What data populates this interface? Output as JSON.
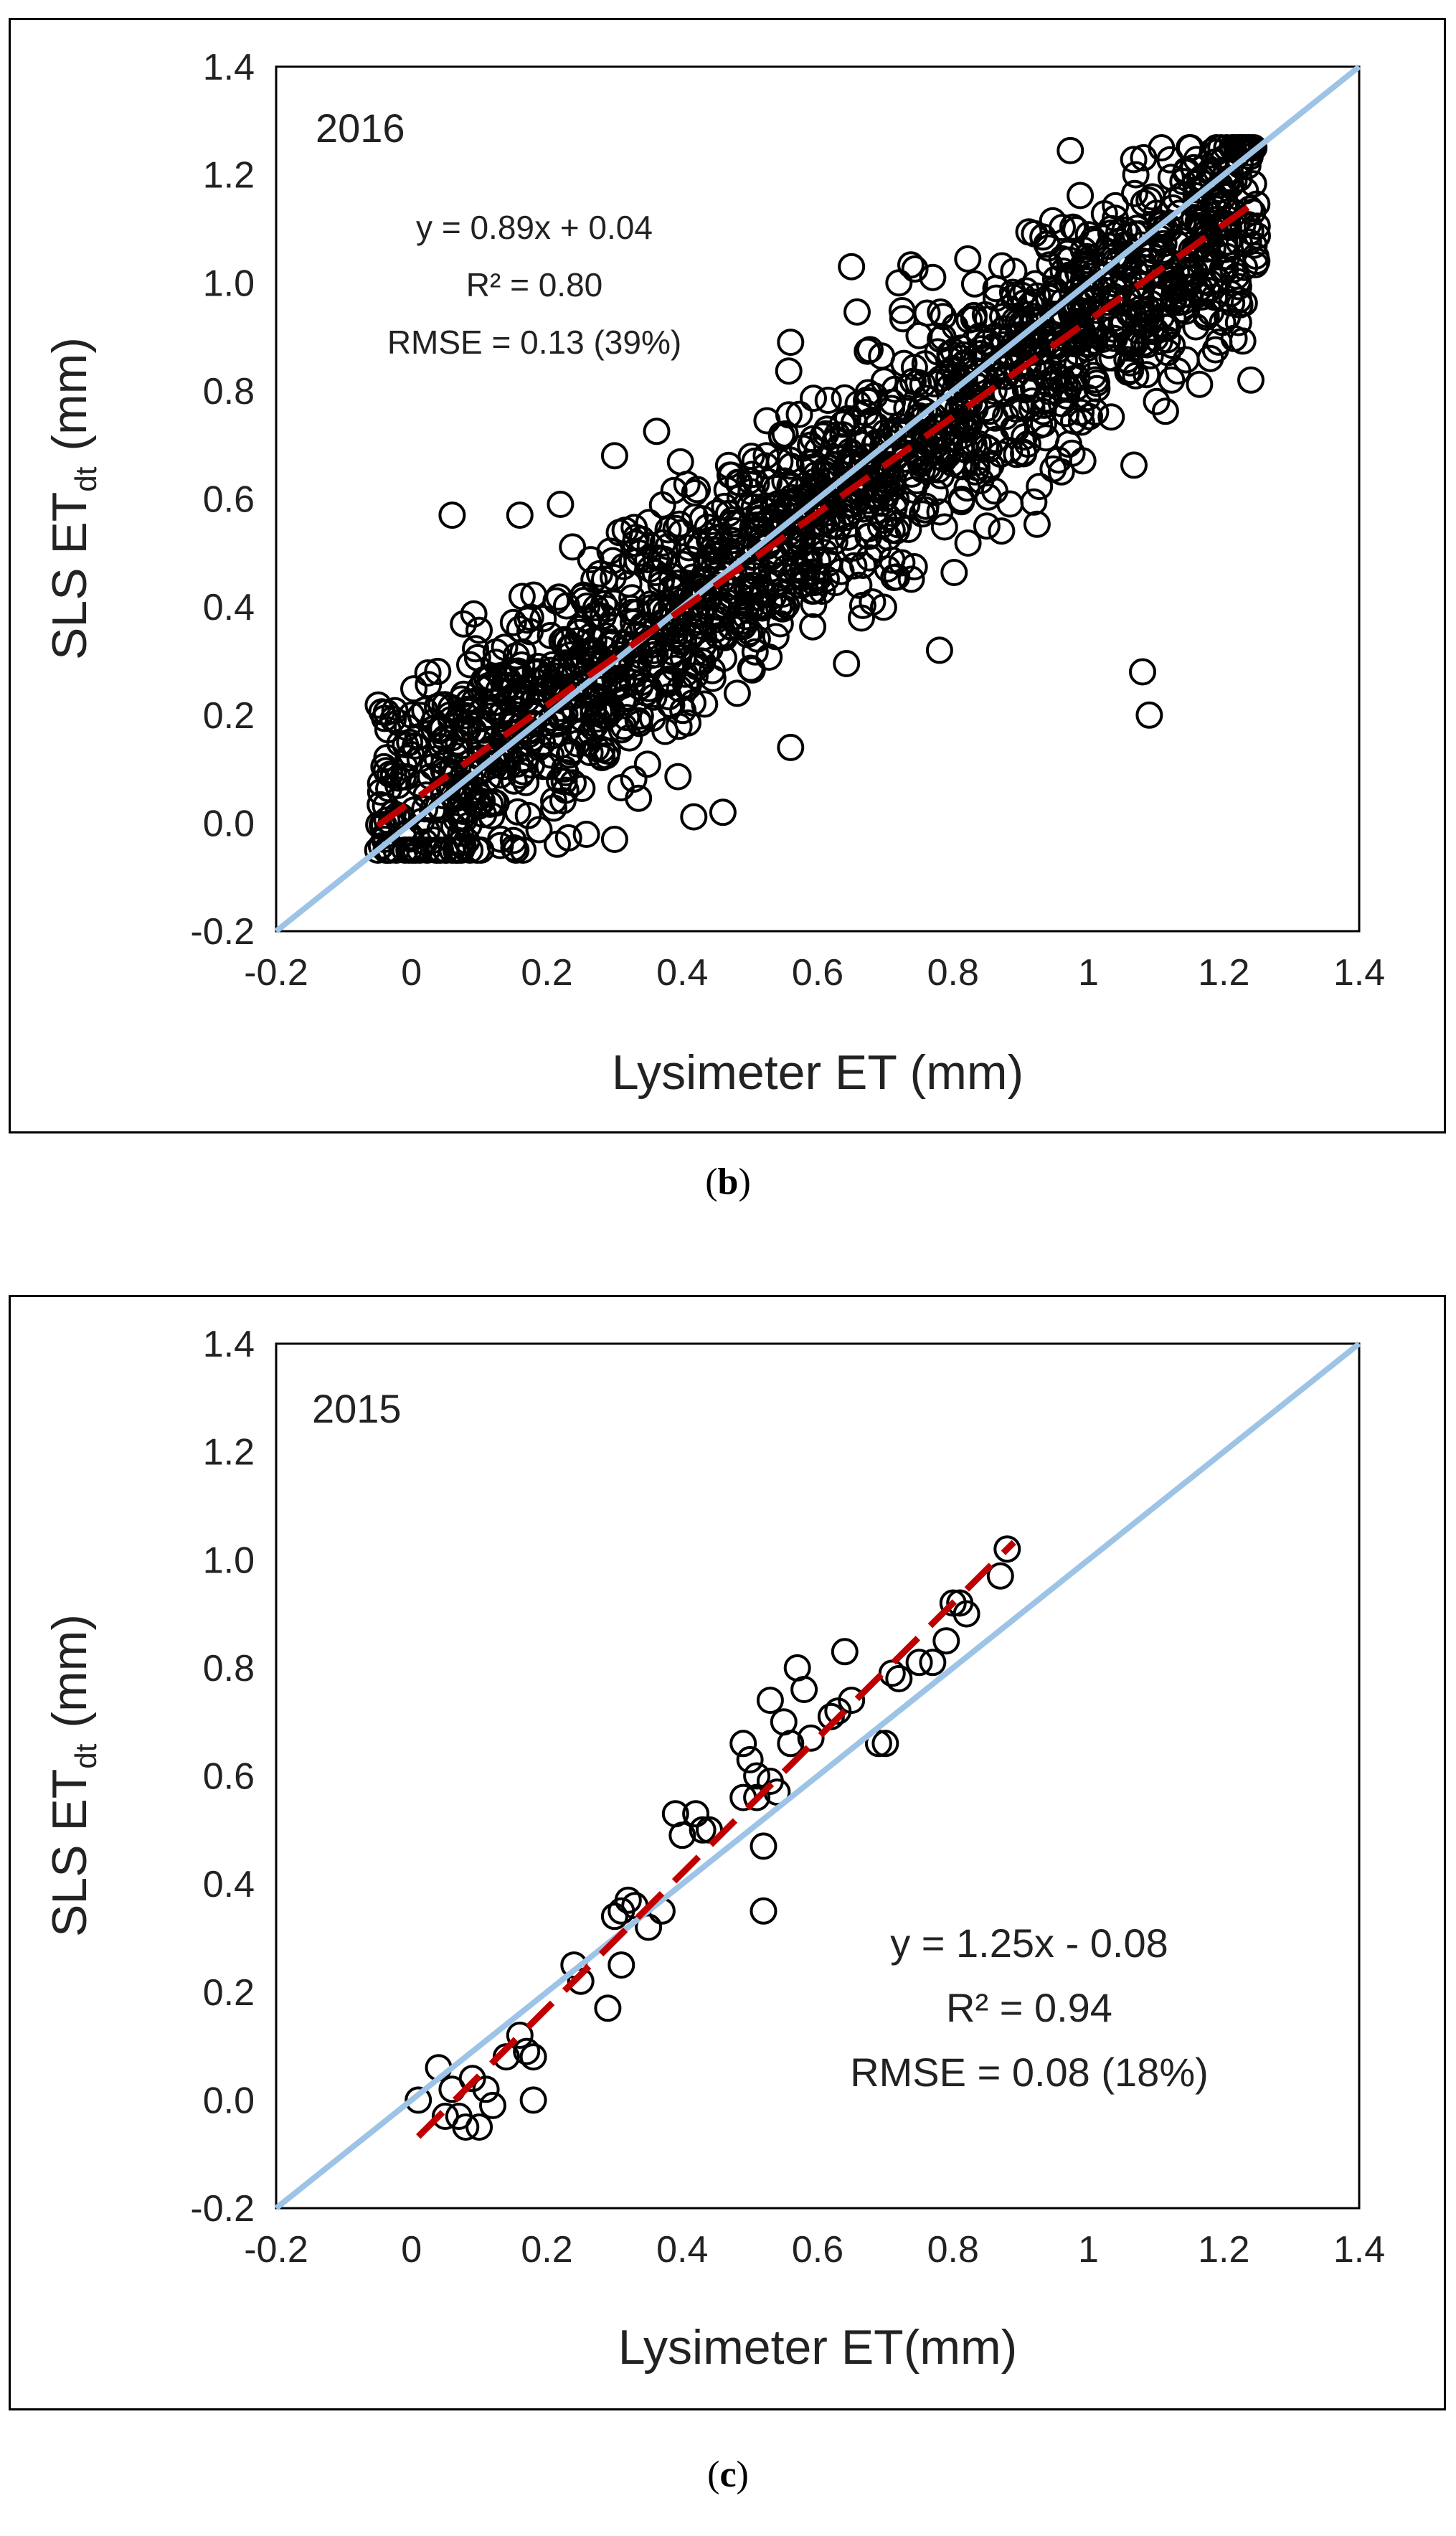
{
  "colors": {
    "identity_line": "#9dc3e6",
    "regression_line": "#c00000",
    "marker_stroke": "#000000"
  },
  "chart_data": [
    {
      "panel": "b",
      "type": "scatter",
      "caption": "b",
      "year_label": "2016",
      "equation": "y = 0.89x + 0.04",
      "r2": "R² = 0.80",
      "rmse": "RMSE = 0.13 (39%)",
      "xlabel": "Lysimeter ET (mm)",
      "ylabel_main": "SLS ET",
      "ylabel_sub": "dt",
      "ylabel_unit": "(mm)",
      "xlim": [
        -0.2,
        1.4
      ],
      "ylim": [
        -0.2,
        1.4
      ],
      "x_ticks": [
        "-0.2",
        "0",
        "0.2",
        "0.4",
        "0.6",
        "0.8",
        "1",
        "1.2",
        "1.4"
      ],
      "y_ticks": [
        "-0.2",
        "0.0",
        "0.2",
        "0.4",
        "0.6",
        "0.8",
        "1.0",
        "1.2",
        "1.4"
      ],
      "fit": {
        "slope": 0.89,
        "intercept": 0.04,
        "x_range": [
          -0.05,
          1.25
        ]
      },
      "identity": {
        "x_range": [
          -0.2,
          1.4
        ]
      },
      "points_generator": {
        "count": 1700,
        "slope": 0.89,
        "intercept": 0.04,
        "noise_sd": 0.11,
        "x_min": -0.05,
        "x_max": 1.25,
        "y_min": -0.05,
        "y_max": 1.25
      },
      "points_extra": [
        [
          1.08,
          0.28
        ],
        [
          1.09,
          0.2
        ],
        [
          0.65,
          1.03
        ],
        [
          0.56,
          0.89
        ],
        [
          0.78,
          0.32
        ],
        [
          1.24,
          0.82
        ],
        [
          0.06,
          0.57
        ],
        [
          0.16,
          0.57
        ],
        [
          0.3,
          0.68
        ],
        [
          1.2,
          1.23
        ],
        [
          1.07,
          1.2
        ],
        [
          0.46,
          0.02
        ],
        [
          0.56,
          0.14
        ],
        [
          0.3,
          -0.03
        ],
        [
          0.22,
          0.59
        ],
        [
          0.72,
          1.0
        ],
        [
          0.77,
          1.01
        ],
        [
          1.21,
          0.98
        ],
        [
          1.18,
          0.86
        ],
        [
          0.96,
          0.65
        ],
        [
          -0.04,
          -0.03
        ],
        [
          -0.03,
          0.0
        ],
        [
          0.0,
          0.2
        ],
        [
          0.85,
          0.55
        ]
      ]
    },
    {
      "panel": "c",
      "type": "scatter",
      "caption": "c",
      "year_label": "2015",
      "equation": "y = 1.25x - 0.08",
      "r2": "R² = 0.94",
      "rmse": "RMSE = 0.08 (18%)",
      "xlabel": "Lysimeter ET(mm)",
      "ylabel_main": "SLS ET",
      "ylabel_sub": "dt",
      "ylabel_unit": "(mm)",
      "xlim": [
        -0.2,
        1.4
      ],
      "ylim": [
        -0.2,
        1.4
      ],
      "x_ticks": [
        "-0.2",
        "0",
        "0.2",
        "0.4",
        "0.6",
        "0.8",
        "1",
        "1.2",
        "1.4"
      ],
      "y_ticks": [
        "-0.2",
        "0.0",
        "0.2",
        "0.4",
        "0.6",
        "0.8",
        "1.0",
        "1.2",
        "1.4"
      ],
      "fit": {
        "slope": 1.25,
        "intercept": -0.08,
        "x_range": [
          0.01,
          0.89
        ]
      },
      "identity": {
        "x_range": [
          -0.2,
          1.4
        ]
      },
      "points": [
        [
          0.01,
          0.0
        ],
        [
          0.04,
          0.06
        ],
        [
          0.05,
          -0.03
        ],
        [
          0.06,
          0.02
        ],
        [
          0.07,
          -0.03
        ],
        [
          0.08,
          -0.05
        ],
        [
          0.09,
          0.04
        ],
        [
          0.1,
          -0.05
        ],
        [
          0.11,
          0.02
        ],
        [
          0.12,
          -0.01
        ],
        [
          0.14,
          0.08
        ],
        [
          0.16,
          0.12
        ],
        [
          0.17,
          0.09
        ],
        [
          0.18,
          0.08
        ],
        [
          0.18,
          0.0
        ],
        [
          0.24,
          0.25
        ],
        [
          0.25,
          0.22
        ],
        [
          0.29,
          0.17
        ],
        [
          0.3,
          0.34
        ],
        [
          0.31,
          0.25
        ],
        [
          0.31,
          0.35
        ],
        [
          0.32,
          0.37
        ],
        [
          0.33,
          0.36
        ],
        [
          0.35,
          0.32
        ],
        [
          0.37,
          0.35
        ],
        [
          0.39,
          0.53
        ],
        [
          0.4,
          0.49
        ],
        [
          0.42,
          0.53
        ],
        [
          0.43,
          0.5
        ],
        [
          0.44,
          0.5
        ],
        [
          0.49,
          0.66
        ],
        [
          0.49,
          0.56
        ],
        [
          0.5,
          0.63
        ],
        [
          0.51,
          0.6
        ],
        [
          0.51,
          0.56
        ],
        [
          0.52,
          0.47
        ],
        [
          0.52,
          0.35
        ],
        [
          0.53,
          0.74
        ],
        [
          0.53,
          0.59
        ],
        [
          0.54,
          0.57
        ],
        [
          0.55,
          0.7
        ],
        [
          0.56,
          0.66
        ],
        [
          0.57,
          0.8
        ],
        [
          0.58,
          0.76
        ],
        [
          0.59,
          0.67
        ],
        [
          0.62,
          0.71
        ],
        [
          0.63,
          0.72
        ],
        [
          0.64,
          0.83
        ],
        [
          0.65,
          0.74
        ],
        [
          0.69,
          0.66
        ],
        [
          0.7,
          0.66
        ],
        [
          0.71,
          0.79
        ],
        [
          0.72,
          0.78
        ],
        [
          0.75,
          0.81
        ],
        [
          0.77,
          0.81
        ],
        [
          0.79,
          0.85
        ],
        [
          0.8,
          0.92
        ],
        [
          0.81,
          0.92
        ],
        [
          0.82,
          0.9
        ],
        [
          0.87,
          0.97
        ],
        [
          0.88,
          1.02
        ]
      ]
    }
  ]
}
